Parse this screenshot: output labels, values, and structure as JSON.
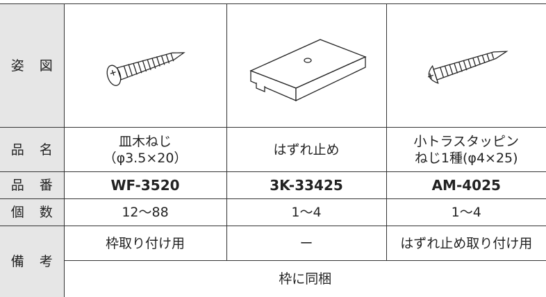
{
  "table": {
    "row_labels": [
      "姿 図",
      "品 名",
      "品 番",
      "個 数",
      "備 考"
    ],
    "names": [
      [
        "皿木ねじ",
        "（φ3.5×20）"
      ],
      [
        "はずれ止め"
      ],
      [
        "小トラスタッピン",
        "ねじ1種(φ4×25)"
      ]
    ],
    "part_numbers": [
      "WF-3520",
      "3K-33425",
      "AM-4025"
    ],
    "quantities": [
      "12～88",
      "1～4",
      "1～4"
    ],
    "remarks": [
      "枠取り付け用",
      "ー",
      "はずれ止め取り付け用"
    ],
    "common_remark": "枠に同梱"
  }
}
